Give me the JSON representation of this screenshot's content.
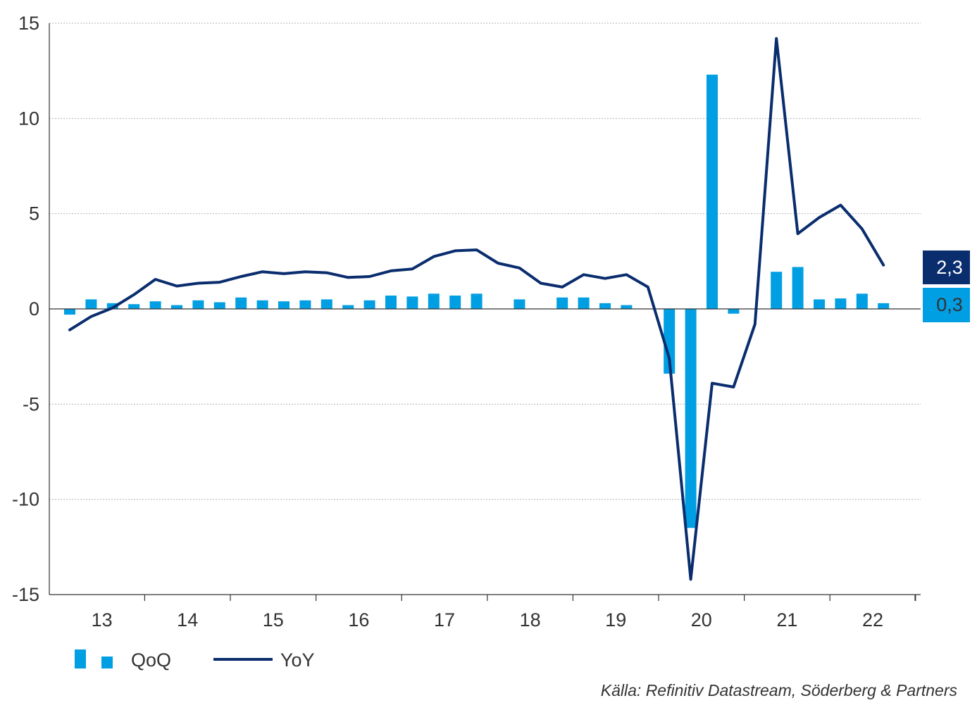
{
  "chart_data": {
    "type": "bar",
    "x_quarters": [
      "2013Q1",
      "2013Q2",
      "2013Q3",
      "2013Q4",
      "2014Q1",
      "2014Q2",
      "2014Q3",
      "2014Q4",
      "2015Q1",
      "2015Q2",
      "2015Q3",
      "2015Q4",
      "2016Q1",
      "2016Q2",
      "2016Q3",
      "2016Q4",
      "2017Q1",
      "2017Q2",
      "2017Q3",
      "2017Q4",
      "2018Q1",
      "2018Q2",
      "2018Q3",
      "2018Q4",
      "2019Q1",
      "2019Q2",
      "2019Q3",
      "2019Q4",
      "2020Q1",
      "2020Q2",
      "2020Q3",
      "2020Q4",
      "2021Q1",
      "2021Q2",
      "2021Q3",
      "2021Q4",
      "2022Q1",
      "2022Q2",
      "2022Q3"
    ],
    "year_labels": [
      "13",
      "14",
      "15",
      "16",
      "17",
      "18",
      "19",
      "20",
      "21",
      "22"
    ],
    "series": [
      {
        "name": "QoQ",
        "type": "bar",
        "color": "#009fe3",
        "values": [
          -0.3,
          0.5,
          0.3,
          0.25,
          0.4,
          0.2,
          0.45,
          0.35,
          0.6,
          0.45,
          0.4,
          0.45,
          0.5,
          0.2,
          0.45,
          0.7,
          0.65,
          0.8,
          0.7,
          0.8,
          0.0,
          0.5,
          0.0,
          0.6,
          0.6,
          0.3,
          0.2,
          0.0,
          -3.4,
          -11.5,
          12.3,
          -0.25,
          0.0,
          1.95,
          2.2,
          0.5,
          0.55,
          0.8,
          0.3
        ]
      },
      {
        "name": "YoY",
        "type": "line",
        "color": "#0a2d6e",
        "values": [
          -1.1,
          -0.4,
          0.05,
          0.75,
          1.55,
          1.2,
          1.35,
          1.4,
          1.7,
          1.95,
          1.85,
          1.95,
          1.9,
          1.65,
          1.7,
          2.0,
          2.1,
          2.75,
          3.05,
          3.1,
          2.4,
          2.15,
          1.35,
          1.15,
          1.8,
          1.6,
          1.8,
          1.15,
          -2.6,
          -14.2,
          -3.9,
          -4.1,
          -0.8,
          14.2,
          3.95,
          4.8,
          5.45,
          4.2,
          2.3
        ]
      }
    ],
    "ylim": [
      -15,
      15
    ],
    "yticks": [
      "15",
      "10",
      "5",
      "0",
      "-5",
      "-10",
      "-15"
    ],
    "grid": true,
    "legend_position": "bottom-left",
    "end_labels": {
      "yoy": "2,3",
      "qoq": "0,3"
    },
    "source": "Källa: Refinitiv Datastream, Söderberg & Partners"
  }
}
